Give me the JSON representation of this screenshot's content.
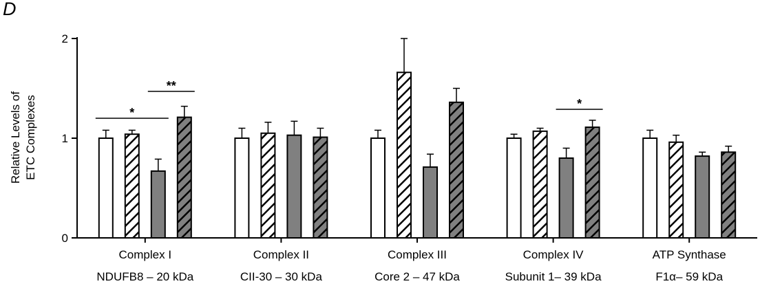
{
  "panel_label": "D",
  "chart_data": {
    "type": "bar",
    "ylabel_line1": "Relative Levels of",
    "ylabel_line2": "ETC Complexes",
    "ylim": [
      0,
      2
    ],
    "yticks": [
      0,
      1,
      2
    ],
    "groups": [
      {
        "label_line1": "Complex I",
        "label_line2": "NDUFB8 – 20 kDa",
        "values": [
          1.0,
          1.04,
          0.67,
          1.21
        ],
        "errors": [
          0.08,
          0.04,
          0.12,
          0.11
        ]
      },
      {
        "label_line1": "Complex II",
        "label_line2": "CII-30 – 30 kDa",
        "values": [
          1.0,
          1.05,
          1.03,
          1.01
        ],
        "errors": [
          0.1,
          0.11,
          0.14,
          0.09
        ]
      },
      {
        "label_line1": "Complex III",
        "label_line2": "Core 2 – 47 kDa",
        "values": [
          1.0,
          1.66,
          0.71,
          1.36
        ],
        "errors": [
          0.08,
          0.34,
          0.13,
          0.14
        ]
      },
      {
        "label_line1": "Complex IV",
        "label_line2": "Subunit 1– 39 kDa",
        "values": [
          1.0,
          1.07,
          0.8,
          1.11
        ],
        "errors": [
          0.04,
          0.03,
          0.1,
          0.07
        ]
      },
      {
        "label_line1": "ATP Synthase",
        "label_line2": "F1α– 59 kDa",
        "values": [
          1.0,
          0.96,
          0.82,
          0.86
        ],
        "errors": [
          0.08,
          0.07,
          0.04,
          0.06
        ]
      }
    ],
    "series_styles": [
      {
        "fill": "white",
        "color": "#ffffff"
      },
      {
        "fill": "hatched-light",
        "color": "#ffffff"
      },
      {
        "fill": "solid-gray",
        "color": "#808080"
      },
      {
        "fill": "hatched-dark",
        "color": "#808080"
      }
    ],
    "significance": [
      {
        "group": 0,
        "from": 0,
        "to": 2,
        "y": 1.2,
        "label": "*"
      },
      {
        "group": 0,
        "from": 2,
        "to": 3,
        "y": 1.47,
        "label": "**"
      },
      {
        "group": 3,
        "from": 2,
        "to": 3,
        "y": 1.29,
        "label": "*"
      }
    ]
  }
}
